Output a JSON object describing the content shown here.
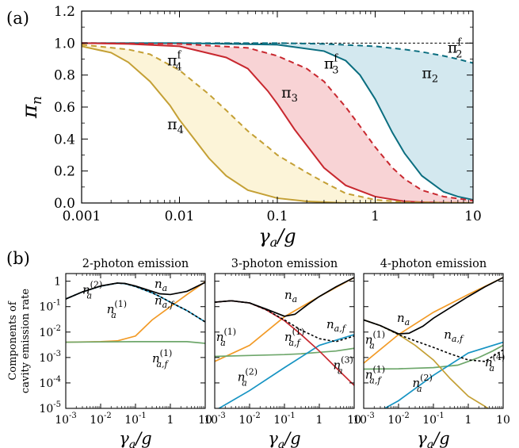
{
  "panel_labels": {
    "a": "(a)",
    "b": "(b)"
  },
  "colors": {
    "pi2": "#0b6e80",
    "pi3": "#c8282f",
    "pi4": "#c4a035",
    "fill2": "#d3e8ef",
    "fill3": "#f8d3d5",
    "fill4": "#fcf4d8",
    "orange": "#f29a26",
    "blue": "#1794c3",
    "green": "#6ea76b",
    "red": "#c8282f",
    "gold": "#c4a035",
    "black": "#000000"
  },
  "chart_data": [
    {
      "id": "panel-a",
      "type": "line",
      "xscale": "log",
      "xlim": [
        0.001,
        10
      ],
      "ylim": [
        0,
        1.2
      ],
      "xlabel_var": "γ",
      "xlabel_sub": "a",
      "xlabel_tail": "/g",
      "ylabel_var": "π",
      "ylabel_sub": "n",
      "xticks": [
        {
          "v": 0.001,
          "label": "0.001"
        },
        {
          "v": 0.01,
          "label": "0.01"
        },
        {
          "v": 0.1,
          "label": "0.1"
        },
        {
          "v": 1,
          "label": "1"
        },
        {
          "v": 10,
          "label": "10"
        }
      ],
      "yticks": [
        {
          "v": 0,
          "label": "0.0"
        },
        {
          "v": 0.2,
          "label": "0.2"
        },
        {
          "v": 0.4,
          "label": "0.4"
        },
        {
          "v": 0.6,
          "label": "0.6"
        },
        {
          "v": 0.8,
          "label": "0.8"
        },
        {
          "v": 1.0,
          "label": "1.0"
        },
        {
          "v": 1.2,
          "label": "1.2"
        }
      ],
      "reference_line": 1.0,
      "series": [
        {
          "key": "pi2",
          "sym": "π",
          "sub": "2",
          "sup": "",
          "style": "solid",
          "color": "#0b6e80",
          "fill": "#d3e8ef",
          "label_at": [
            3.0,
            0.78
          ],
          "x": [
            0.001,
            0.01,
            0.1,
            0.3,
            0.5,
            0.7,
            1,
            1.5,
            2,
            3,
            5,
            7,
            10
          ],
          "y": [
            1.0,
            1.0,
            0.99,
            0.95,
            0.89,
            0.8,
            0.65,
            0.44,
            0.31,
            0.17,
            0.07,
            0.04,
            0.02
          ]
        },
        {
          "key": "pi2f",
          "sym": "π",
          "sub": "2",
          "sup": "f",
          "style": "dashed",
          "color": "#0b6e80",
          "label_at": [
            5.5,
            0.94
          ],
          "x": [
            0.001,
            0.01,
            0.1,
            0.3,
            1,
            2,
            3,
            5,
            7,
            10
          ],
          "y": [
            1.0,
            1.0,
            1.0,
            0.995,
            0.98,
            0.96,
            0.945,
            0.92,
            0.9,
            0.875
          ]
        },
        {
          "key": "pi3",
          "sym": "π",
          "sub": "3",
          "sup": "",
          "style": "solid",
          "color": "#c8282f",
          "fill": "#f8d3d5",
          "label_at": [
            0.11,
            0.66
          ],
          "x": [
            0.001,
            0.003,
            0.01,
            0.03,
            0.05,
            0.08,
            0.1,
            0.15,
            0.2,
            0.3,
            0.5,
            1,
            2,
            3,
            5,
            10
          ],
          "y": [
            1.0,
            0.995,
            0.98,
            0.91,
            0.84,
            0.7,
            0.62,
            0.46,
            0.36,
            0.22,
            0.11,
            0.04,
            0.01,
            0.005,
            0.002,
            0.0
          ]
        },
        {
          "key": "pi3f",
          "sym": "π",
          "sub": "3",
          "sup": "f",
          "style": "dashed",
          "color": "#c8282f",
          "label_at": [
            0.3,
            0.84
          ],
          "x": [
            0.001,
            0.01,
            0.05,
            0.1,
            0.2,
            0.3,
            0.5,
            0.7,
            1,
            1.5,
            2,
            3,
            5,
            10
          ],
          "y": [
            1.0,
            0.995,
            0.97,
            0.92,
            0.84,
            0.76,
            0.6,
            0.48,
            0.35,
            0.22,
            0.15,
            0.08,
            0.04,
            0.015
          ]
        },
        {
          "key": "pi4",
          "sym": "π",
          "sub": "4",
          "sup": "",
          "style": "solid",
          "color": "#c4a035",
          "fill": "#fcf4d8",
          "label_at": [
            0.0075,
            0.46
          ],
          "x": [
            0.001,
            0.002,
            0.003,
            0.005,
            0.008,
            0.01,
            0.015,
            0.02,
            0.03,
            0.05,
            0.1,
            0.2,
            0.5,
            1,
            10
          ],
          "y": [
            0.98,
            0.94,
            0.88,
            0.76,
            0.61,
            0.52,
            0.38,
            0.28,
            0.17,
            0.08,
            0.03,
            0.01,
            0.0,
            0.0,
            0.0
          ]
        },
        {
          "key": "pi4f",
          "sym": "π",
          "sub": "4",
          "sup": "f",
          "style": "dashed",
          "color": "#c4a035",
          "label_at": [
            0.0075,
            0.86
          ],
          "x": [
            0.001,
            0.003,
            0.005,
            0.01,
            0.02,
            0.03,
            0.05,
            0.08,
            0.1,
            0.2,
            0.3,
            0.5,
            1,
            2,
            10
          ],
          "y": [
            0.99,
            0.96,
            0.93,
            0.83,
            0.68,
            0.58,
            0.45,
            0.35,
            0.3,
            0.19,
            0.13,
            0.06,
            0.02,
            0.005,
            0.0
          ]
        }
      ]
    },
    {
      "id": "panel-b1",
      "title": "2-photon emission",
      "type": "line",
      "xscale": "log",
      "yscale": "log",
      "xlim": [
        0.001,
        10
      ],
      "ylim": [
        1e-05,
        2
      ],
      "xticks": [
        {
          "v": 0.001,
          "b": "10",
          "e": "-3"
        },
        {
          "v": 0.01,
          "b": "10",
          "e": "-2"
        },
        {
          "v": 0.1,
          "b": "10",
          "e": "-1"
        },
        {
          "v": 1,
          "b": "1",
          "e": ""
        },
        {
          "v": 10,
          "b": "10",
          "e": ""
        }
      ],
      "yticks": [
        {
          "v": 1,
          "b": "1",
          "e": ""
        },
        {
          "v": 0.1,
          "b": "10",
          "e": "-1"
        },
        {
          "v": 0.01,
          "b": "10",
          "e": "-2"
        },
        {
          "v": 0.001,
          "b": "10",
          "e": "-3"
        },
        {
          "v": 0.0001,
          "b": "10",
          "e": "-4"
        },
        {
          "v": 1e-05,
          "b": "10",
          "e": "-5"
        }
      ],
      "ylabel_lines": [
        "Components of",
        "cavity emission rate"
      ],
      "series": [
        {
          "key": "na",
          "base": "n",
          "sub": "a",
          "sup": "",
          "color": "#000000",
          "style": "solid",
          "label_at": [
            0.35,
            0.55
          ],
          "x": [
            0.001,
            0.003,
            0.01,
            0.03,
            0.05,
            0.1,
            0.3,
            0.5,
            1,
            3,
            10
          ],
          "y": [
            0.2,
            0.38,
            0.65,
            0.85,
            0.82,
            0.65,
            0.4,
            0.32,
            0.3,
            0.4,
            0.9
          ]
        },
        {
          "key": "naf",
          "base": "n",
          "sub": "a,f",
          "sup": "",
          "color": "#000000",
          "style": "dashed",
          "label_at": [
            0.35,
            0.12
          ],
          "x": [
            0.001,
            0.003,
            0.01,
            0.03,
            0.05,
            0.1,
            0.3,
            0.5,
            1,
            3,
            10
          ],
          "y": [
            0.2,
            0.38,
            0.64,
            0.84,
            0.8,
            0.62,
            0.35,
            0.25,
            0.15,
            0.07,
            0.025
          ]
        },
        {
          "key": "na2",
          "base": "n",
          "sub": "a",
          "sup": "(2)",
          "color": "#1794c3",
          "style": "solid",
          "label_at": [
            0.003,
            0.32
          ],
          "x": [
            0.001,
            0.003,
            0.01,
            0.03,
            0.05,
            0.1,
            0.3,
            0.5,
            1,
            3,
            10
          ],
          "y": [
            0.2,
            0.38,
            0.64,
            0.84,
            0.8,
            0.62,
            0.35,
            0.25,
            0.15,
            0.07,
            0.025
          ]
        },
        {
          "key": "na1",
          "base": "n",
          "sub": "a",
          "sup": "(1)",
          "color": "#f29a26",
          "style": "solid",
          "label_at": [
            0.015,
            0.055
          ],
          "x": [
            0.001,
            0.01,
            0.03,
            0.1,
            0.3,
            1,
            3,
            10
          ],
          "y": [
            0.004,
            0.0042,
            0.0045,
            0.007,
            0.03,
            0.1,
            0.3,
            0.95
          ]
        },
        {
          "key": "na1f",
          "base": "n",
          "sub": "a,f",
          "sup": "(1)",
          "color": "#6ea76b",
          "style": "solid",
          "label_at": [
            0.3,
            0.00065
          ],
          "x": [
            0.001,
            0.01,
            0.1,
            1,
            3,
            10
          ],
          "y": [
            0.004,
            0.0041,
            0.0042,
            0.0042,
            0.0042,
            0.0036
          ]
        }
      ]
    },
    {
      "id": "panel-b2",
      "title": "3-photon emission",
      "type": "line",
      "xscale": "log",
      "yscale": "log",
      "xlim": [
        0.001,
        10
      ],
      "ylim": [
        1e-05,
        2
      ],
      "xticks": [
        {
          "v": 0.001,
          "b": "10",
          "e": "-3"
        },
        {
          "v": 0.01,
          "b": "10",
          "e": "-2"
        },
        {
          "v": 0.1,
          "b": "10",
          "e": "-1"
        },
        {
          "v": 1,
          "b": "1",
          "e": ""
        },
        {
          "v": 10,
          "b": "10",
          "e": ""
        }
      ],
      "series": [
        {
          "key": "na",
          "base": "n",
          "sub": "a",
          "sup": "",
          "color": "#000000",
          "style": "solid",
          "label_at": [
            0.1,
            0.2
          ],
          "x": [
            0.001,
            0.003,
            0.01,
            0.03,
            0.1,
            0.2,
            0.5,
            1,
            3,
            10
          ],
          "y": [
            0.15,
            0.17,
            0.14,
            0.08,
            0.042,
            0.05,
            0.13,
            0.25,
            0.6,
            1.4
          ]
        },
        {
          "key": "naf",
          "base": "n",
          "sub": "a,f",
          "sup": "",
          "color": "#000000",
          "style": "dashed",
          "label_at": [
            1.6,
            0.014
          ],
          "x": [
            0.001,
            0.003,
            0.01,
            0.03,
            0.1,
            0.3,
            1,
            3,
            10
          ],
          "y": [
            0.15,
            0.17,
            0.14,
            0.075,
            0.03,
            0.012,
            0.0055,
            0.0042,
            0.007
          ]
        },
        {
          "key": "na1",
          "base": "n",
          "sub": "a",
          "sup": "(1)",
          "color": "#f29a26",
          "style": "solid",
          "label_at": [
            0.0011,
            0.0045
          ],
          "x": [
            0.001,
            0.01,
            0.1,
            1,
            10
          ],
          "y": [
            0.0007,
            0.003,
            0.04,
            0.25,
            1.4
          ]
        },
        {
          "key": "na1f",
          "base": "n",
          "sub": "a,f",
          "sup": "(1)",
          "color": "#6ea76b",
          "style": "solid",
          "label_at": [
            0.1,
            0.0045
          ],
          "x": [
            0.001,
            0.01,
            0.1,
            0.3,
            1,
            3,
            10
          ],
          "y": [
            0.0011,
            0.0012,
            0.0013,
            0.0014,
            0.0016,
            0.0018,
            0.0023
          ]
        },
        {
          "key": "na2",
          "base": "n",
          "sub": "a",
          "sup": "(2)",
          "color": "#1794c3",
          "style": "solid",
          "label_at": [
            0.0045,
            0.00012
          ],
          "x": [
            0.001,
            0.01,
            0.1,
            1,
            10
          ],
          "y": [
            8e-06,
            5e-05,
            0.0004,
            0.003,
            0.008
          ]
        },
        {
          "key": "na3",
          "base": "n",
          "sub": "a",
          "sup": "(3)",
          "color": "#c8282f",
          "style": "solid",
          "label_at": [
            2.5,
            0.00035
          ],
          "x": [
            0.001,
            0.003,
            0.01,
            0.03,
            0.1,
            0.3,
            1,
            3,
            10
          ],
          "y": [
            0.15,
            0.17,
            0.14,
            0.075,
            0.028,
            0.008,
            0.0018,
            0.0004,
            8e-05
          ]
        }
      ]
    },
    {
      "id": "panel-b3",
      "title": "4-photon emission",
      "type": "line",
      "xscale": "log",
      "yscale": "log",
      "xlim": [
        0.001,
        10
      ],
      "ylim": [
        1e-05,
        2
      ],
      "xticks": [
        {
          "v": 0.001,
          "b": "10",
          "e": "-3"
        },
        {
          "v": 0.01,
          "b": "10",
          "e": "-2"
        },
        {
          "v": 0.1,
          "b": "10",
          "e": "-1"
        },
        {
          "v": 1,
          "b": "1",
          "e": ""
        },
        {
          "v": 10,
          "b": "10",
          "e": ""
        }
      ],
      "series": [
        {
          "key": "na",
          "base": "n",
          "sub": "a",
          "sup": "",
          "color": "#000000",
          "style": "solid",
          "label_at": [
            0.009,
            0.025
          ],
          "x": [
            0.001,
            0.003,
            0.01,
            0.02,
            0.05,
            0.1,
            0.3,
            1,
            3,
            10
          ],
          "y": [
            0.03,
            0.018,
            0.0085,
            0.009,
            0.017,
            0.035,
            0.09,
            0.25,
            0.6,
            1.4
          ]
        },
        {
          "key": "naf",
          "base": "n",
          "sub": "a,f",
          "sup": "",
          "color": "#000000",
          "style": "dashed",
          "label_at": [
            0.2,
            0.0055
          ],
          "x": [
            0.001,
            0.003,
            0.01,
            0.03,
            0.1,
            0.3,
            1,
            3,
            10
          ],
          "y": [
            0.03,
            0.018,
            0.008,
            0.0045,
            0.0025,
            0.0014,
            0.0008,
            0.0007,
            0.002
          ]
        },
        {
          "key": "na1",
          "base": "n",
          "sub": "a",
          "sup": "(1)",
          "color": "#f29a26",
          "style": "solid",
          "label_at": [
            0.0011,
            0.0035
          ],
          "x": [
            0.001,
            0.01,
            0.1,
            1,
            10
          ],
          "y": [
            0.0006,
            0.008,
            0.06,
            0.3,
            1.4
          ]
        },
        {
          "key": "na1f",
          "base": "n",
          "sub": "a,f",
          "sup": "(1)",
          "color": "#6ea76b",
          "style": "solid",
          "label_at": [
            0.0011,
            0.00015
          ],
          "x": [
            0.001,
            0.01,
            0.1,
            0.5,
            1,
            2,
            5,
            10
          ],
          "y": [
            0.00035,
            0.00036,
            0.0004,
            0.0005,
            0.0007,
            0.001,
            0.0018,
            0.003
          ]
        },
        {
          "key": "na2",
          "base": "n",
          "sub": "a",
          "sup": "(2)",
          "color": "#1794c3",
          "style": "solid",
          "label_at": [
            0.025,
            7e-05
          ],
          "x": [
            0.003,
            0.01,
            0.1,
            1,
            10
          ],
          "y": [
            8e-06,
            2e-05,
            0.0002,
            0.0015,
            0.004
          ]
        },
        {
          "key": "na4",
          "base": "n",
          "sub": "a",
          "sup": "(4)",
          "color": "#c4a035",
          "style": "solid",
          "label_at": [
            3.0,
            0.00045
          ],
          "x": [
            0.001,
            0.003,
            0.01,
            0.03,
            0.1,
            0.3,
            1,
            3,
            10
          ],
          "y": [
            0.03,
            0.018,
            0.008,
            0.003,
            0.0008,
            0.00015,
            3e-05,
            1.2e-05,
            4e-06
          ]
        }
      ]
    }
  ]
}
